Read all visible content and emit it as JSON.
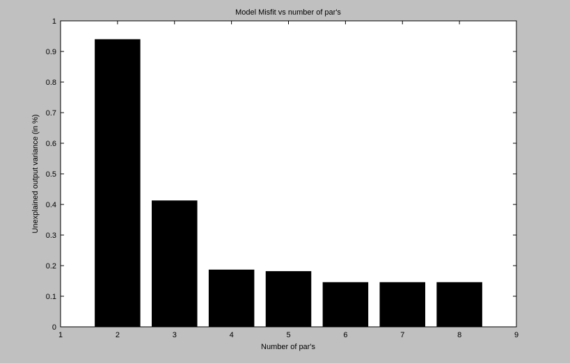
{
  "chart_data": {
    "type": "bar",
    "title": "Model Misfit vs number of par's",
    "xlabel": "Number of par's",
    "ylabel": "Unexplained output variance (in %)",
    "x": [
      2,
      3,
      4,
      5,
      6,
      7,
      8
    ],
    "values": [
      0.94,
      0.413,
      0.187,
      0.182,
      0.146,
      0.146,
      0.146
    ],
    "xlim": [
      1,
      9
    ],
    "ylim": [
      0,
      1
    ],
    "xticks": [
      1,
      2,
      3,
      4,
      5,
      6,
      7,
      8,
      9
    ],
    "yticks": [
      0,
      0.1,
      0.2,
      0.3,
      0.4,
      0.5,
      0.6,
      0.7,
      0.8,
      0.9,
      1
    ],
    "ytick_labels": [
      "0",
      "0.1",
      "0.2",
      "0.3",
      "0.4",
      "0.5",
      "0.6",
      "0.7",
      "0.8",
      "0.9",
      "1"
    ],
    "grid": false,
    "bar_color": "#000000",
    "axes_background": "#ffffff",
    "figure_background": "#c0c0c0"
  }
}
